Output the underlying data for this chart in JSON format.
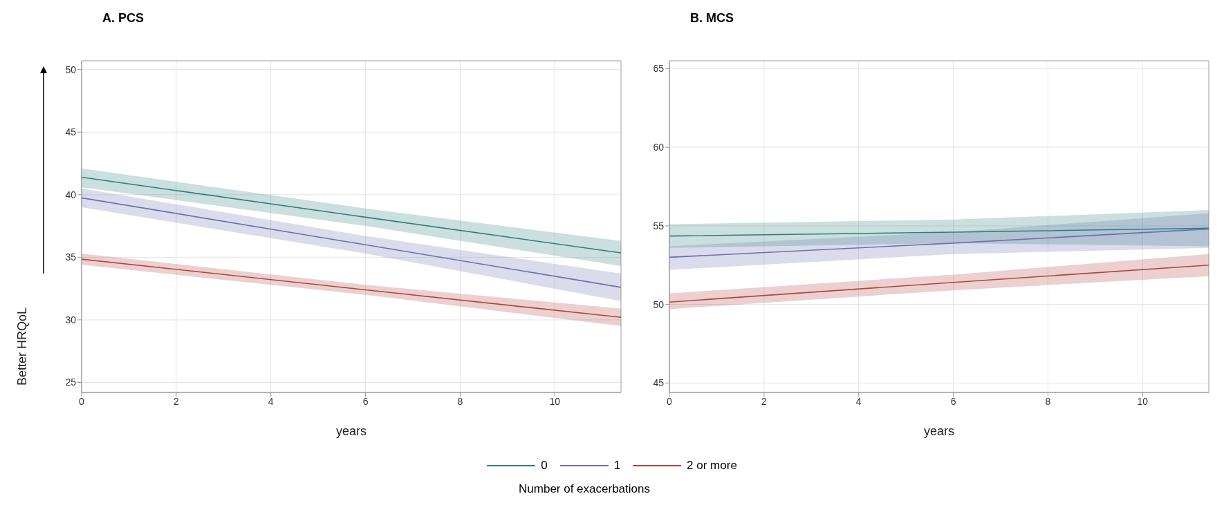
{
  "chart_data": [
    {
      "type": "line",
      "title": "A. PCS",
      "xlabel": "years",
      "ylabel": "Better HRQoL",
      "legend_title": "Number of exacerbations",
      "legend": "bottom",
      "grid": true,
      "x": [
        0,
        6,
        11.4
      ],
      "xlim": [
        0,
        11.4
      ],
      "xticks": [
        0,
        2,
        4,
        6,
        8,
        10
      ],
      "ylim": [
        24.2,
        50.7
      ],
      "yticks": [
        25,
        30,
        35,
        40,
        45,
        50
      ],
      "series": [
        {
          "name": "0",
          "color": "#2a7f7b",
          "values": [
            41.4,
            38.2,
            35.35
          ],
          "lower": [
            40.6,
            37.5,
            34.3
          ],
          "upper": [
            42.1,
            38.9,
            36.3
          ]
        },
        {
          "name": "1",
          "color": "#6b6fb0",
          "values": [
            39.75,
            36.0,
            32.6
          ],
          "lower": [
            39.0,
            35.3,
            31.5
          ],
          "upper": [
            40.5,
            36.7,
            33.7
          ]
        },
        {
          "name": "2  or more",
          "color": "#b0453f",
          "values": [
            34.85,
            32.4,
            30.2
          ],
          "lower": [
            34.4,
            32.0,
            29.5
          ],
          "upper": [
            35.3,
            32.8,
            30.9
          ]
        }
      ]
    },
    {
      "type": "line",
      "title": "B. MCS",
      "xlabel": "years",
      "grid": true,
      "x": [
        0,
        6,
        11.4
      ],
      "xlim": [
        0,
        11.4
      ],
      "xticks": [
        0,
        2,
        4,
        6,
        8,
        10
      ],
      "ylim": [
        44.4,
        65.5
      ],
      "yticks": [
        45,
        50,
        55,
        60,
        65
      ],
      "series": [
        {
          "color": "#2a7f7b",
          "values": [
            54.35,
            54.6,
            54.85
          ],
          "lower": [
            53.6,
            53.9,
            53.7
          ],
          "upper": [
            55.1,
            55.4,
            56.0
          ]
        },
        {
          "color": "#6b6fb0",
          "values": [
            53.0,
            53.9,
            54.8
          ],
          "lower": [
            52.2,
            53.2,
            53.6
          ],
          "upper": [
            53.7,
            54.6,
            55.8
          ]
        },
        {
          "color": "#b0453f",
          "values": [
            50.15,
            51.4,
            52.5
          ],
          "lower": [
            49.7,
            50.9,
            51.8
          ],
          "upper": [
            50.7,
            51.9,
            53.2
          ]
        }
      ]
    }
  ]
}
